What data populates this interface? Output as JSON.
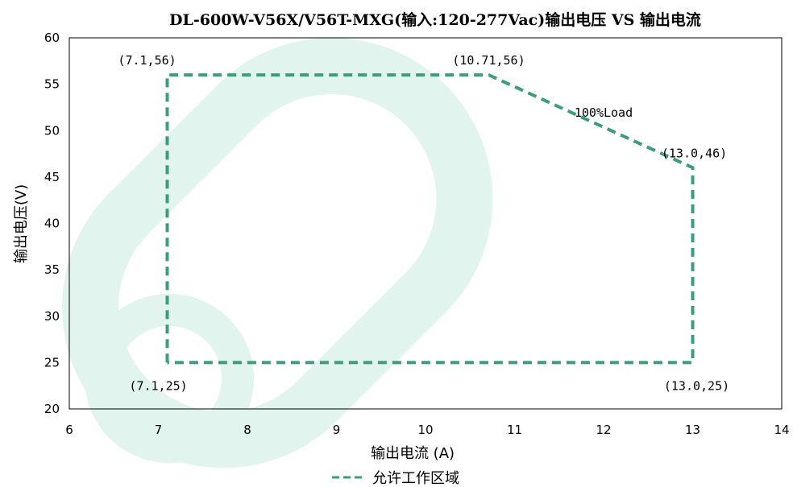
{
  "chart_data": {
    "type": "line",
    "title": "DL-600W-V56X/V56T-MXG(输入:120-277Vac)输出电压 VS 输出电流",
    "xlabel": "输出电流 (A)",
    "ylabel": "输出电压(V)",
    "xlim": [
      6,
      14
    ],
    "ylim": [
      20,
      60
    ],
    "xticks": [
      6,
      7,
      8,
      9,
      10,
      11,
      12,
      13,
      14
    ],
    "yticks": [
      20,
      25,
      30,
      35,
      40,
      45,
      50,
      55,
      60
    ],
    "grid": false,
    "legend_position": "bottom",
    "series": [
      {
        "name": "允许工作区域",
        "color": "#3d9c7a",
        "style": "dashed",
        "points": [
          [
            7.1,
            25
          ],
          [
            7.1,
            56
          ],
          [
            10.71,
            56
          ],
          [
            13.0,
            46
          ],
          [
            13.0,
            25
          ],
          [
            7.1,
            25
          ]
        ]
      }
    ],
    "annotations": [
      {
        "text": "(7.1,56)",
        "x": 7.1,
        "y": 56
      },
      {
        "text": "(10.71,56)",
        "x": 10.71,
        "y": 56
      },
      {
        "text": "100%Load",
        "x": 12.0,
        "y": 51.5
      },
      {
        "text": "(13.0,46)",
        "x": 13.0,
        "y": 46
      },
      {
        "text": "(7.1,25)",
        "x": 7.1,
        "y": 25
      },
      {
        "text": "(13.0,25)",
        "x": 13.0,
        "y": 25
      }
    ]
  },
  "watermark_colors": {
    "primary": "#d7f1e8"
  }
}
